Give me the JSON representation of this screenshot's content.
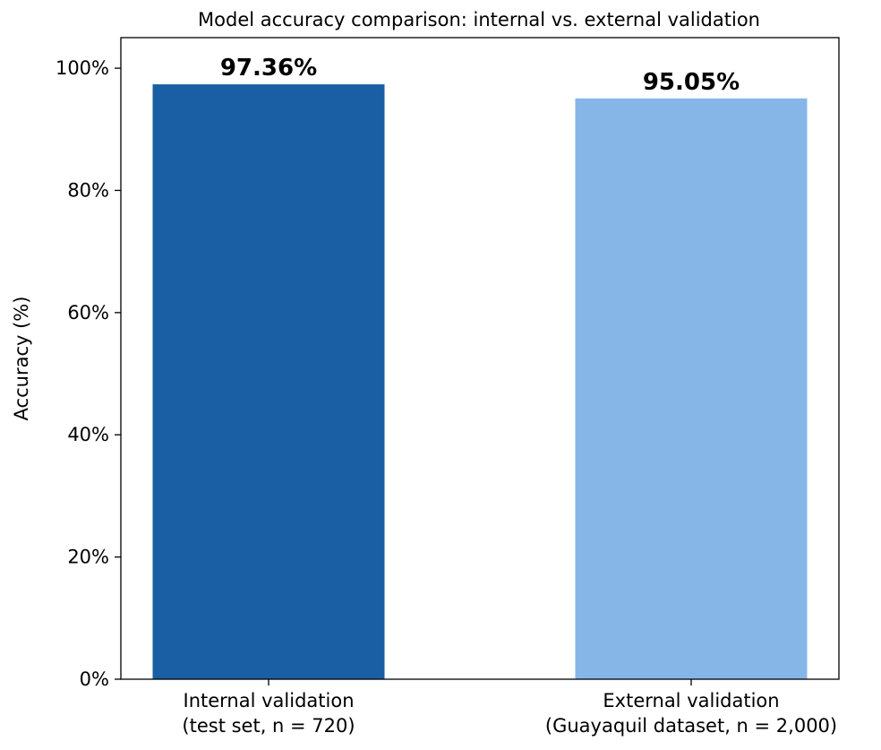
{
  "chart_data": {
    "type": "bar",
    "title": "Model accuracy comparison: internal vs. external validation",
    "ylabel": "Accuracy (%)",
    "xlabel": "",
    "categories": [
      [
        "Internal validation",
        "(test set, n = 720)"
      ],
      [
        "External validation",
        "(Guayaquil dataset, n = 2,000)"
      ]
    ],
    "values": [
      97.36,
      95.05
    ],
    "data_labels": [
      "97.36%",
      "95.05%"
    ],
    "colors": [
      "#1a5ea3",
      "#86b6e8"
    ],
    "ylim": [
      0,
      105
    ],
    "yticks": [
      0,
      20,
      40,
      60,
      80,
      100
    ],
    "ytick_labels": [
      "0%",
      "20%",
      "40%",
      "60%",
      "80%",
      "100%"
    ],
    "grid": false,
    "legend": "none"
  }
}
